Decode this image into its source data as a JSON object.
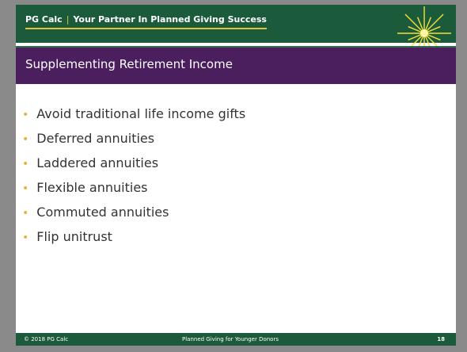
{
  "header": {
    "brand": "PG Calc",
    "tagline": "Your Partner In Planned Giving Success"
  },
  "slide": {
    "title": "Supplementing Retirement Income",
    "bullets": [
      "Avoid traditional life income gifts",
      "Deferred annuities",
      "Laddered annuities",
      "Flexible annuities",
      "Commuted annuities",
      "Flip unitrust"
    ]
  },
  "footer": {
    "copyright": "© 2018 PG Calc",
    "deck": "Planned Giving for Younger Donors",
    "page": "18"
  }
}
